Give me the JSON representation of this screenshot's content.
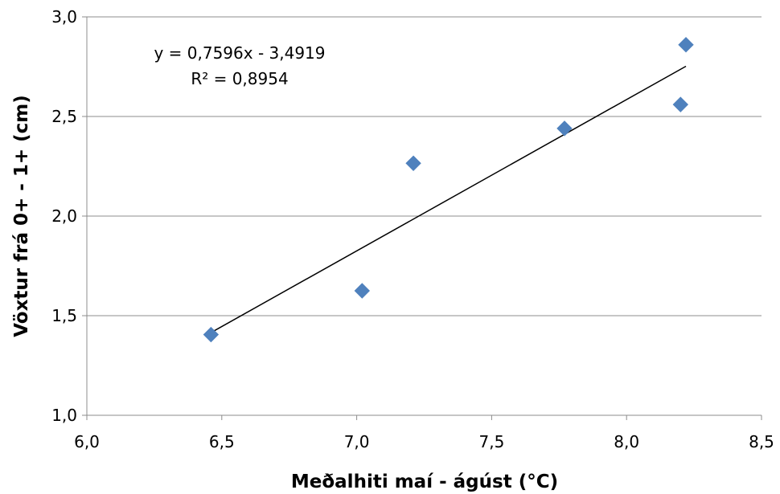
{
  "chart_data": {
    "type": "scatter",
    "title": "",
    "xlabel": "Meðalhiti maí - ágúst (°C)",
    "ylabel": "Vöxtur frá 0+ - 1+ (cm)",
    "xlim": [
      6.0,
      8.5
    ],
    "ylim": [
      1.0,
      3.0
    ],
    "x_ticks": [
      6.0,
      6.5,
      7.0,
      7.5,
      8.0,
      8.5
    ],
    "y_ticks": [
      1.0,
      1.5,
      2.0,
      2.5,
      3.0
    ],
    "x_tick_labels": [
      "6,0",
      "6,5",
      "7,0",
      "7,5",
      "8,0",
      "8,5"
    ],
    "y_tick_labels": [
      "1,0",
      "1,5",
      "2,0",
      "2,5",
      "3,0"
    ],
    "grid": "horizontal",
    "legend": "none",
    "marker_color": "#4f81bd",
    "marker_shape": "diamond",
    "series": [
      {
        "x": [
          6.46,
          7.02,
          7.21,
          7.77,
          8.2,
          8.22
        ],
        "y": [
          1.405,
          1.625,
          2.265,
          2.44,
          2.56,
          2.86
        ]
      }
    ],
    "trendline": {
      "type": "linear",
      "slope": 0.7596,
      "intercept": -3.4919,
      "x_range": [
        6.46,
        8.22
      ],
      "color": "#000000",
      "equation_label": "y = 0,7596x - 3,4919",
      "r2_label": "R² = 0,8954"
    }
  }
}
